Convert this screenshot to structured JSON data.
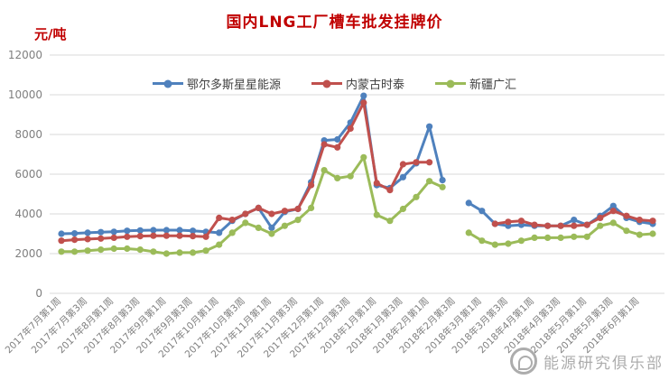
{
  "title": "国内LNG工厂槽车批发挂牌价",
  "y_unit": "元/吨",
  "watermark": "能源研究俱乐部",
  "colors": {
    "series_blue": "#4F81BD",
    "series_red": "#C0504D",
    "series_green": "#9BBB59",
    "title_red": "#C00000",
    "axis_text": "#7F7F7F",
    "gridline": "#D9D9D9",
    "legend_text": "#404040",
    "watermark_gray": "#9E9E9E"
  },
  "chart_data": {
    "type": "line",
    "title": "国内LNG工厂槽车批发挂牌价",
    "ylabel": "元/吨",
    "ylim": [
      0,
      12000
    ],
    "ytick_interval": 2000,
    "ytick_labels": [
      "12000",
      "10000",
      "8000",
      "6000",
      "4000",
      "2000",
      "0"
    ],
    "grid": true,
    "legend_position": "top-center",
    "points_total": 46,
    "x_label_every_n_points": 2,
    "x_labels": [
      "2017年7月第1周",
      "2017年7月第3周",
      "2017年8月第1周",
      "2017年8月第3周",
      "2017年9月第1周",
      "2017年9月第3周",
      "2017年10月第1周",
      "2017年10月第3周",
      "2017年11月第1周",
      "2017年11月第3周",
      "2017年12月第1周",
      "2017年12月第3周",
      "2018年1月第1周",
      "2018年1月第3周",
      "2018年2月第1周",
      "2018年2月第3周",
      "2018年3月第1周",
      "2018年3月第3周",
      "2018年4月第1周",
      "2018年4月第3周",
      "2018年5月第1周",
      "2018年5月第3周",
      "2018年6月第1周"
    ],
    "series": [
      {
        "name": "鄂尔多斯星星能源",
        "color": "#4F81BD",
        "values": [
          3000,
          3020,
          3050,
          3080,
          3100,
          3150,
          3170,
          3180,
          3180,
          3180,
          3150,
          3100,
          3050,
          3650,
          4000,
          4300,
          3300,
          4100,
          4250,
          5600,
          7700,
          7750,
          8600,
          9950,
          5450,
          5300,
          5850,
          6550,
          8400,
          5700,
          null,
          4550,
          4150,
          3500,
          3400,
          3450,
          3400,
          3400,
          3400,
          3700,
          3450,
          3900,
          4400,
          3800,
          3600,
          3500
        ]
      },
      {
        "name": "内蒙古时泰",
        "color": "#C0504D",
        "values": [
          2650,
          2700,
          2730,
          2760,
          2800,
          2850,
          2880,
          2900,
          2900,
          2900,
          2880,
          2850,
          3800,
          3700,
          4000,
          4300,
          4000,
          4150,
          4250,
          5450,
          7500,
          7350,
          8300,
          9600,
          5550,
          5200,
          6500,
          6600,
          6600,
          null,
          null,
          null,
          null,
          3500,
          3600,
          3650,
          3450,
          3400,
          3400,
          3400,
          3450,
          3800,
          4150,
          3900,
          3700,
          3650
        ]
      },
      {
        "name": "新疆广汇",
        "color": "#9BBB59",
        "values": [
          2100,
          2100,
          2150,
          2200,
          2250,
          2250,
          2200,
          2100,
          2000,
          2050,
          2050,
          2150,
          2450,
          3050,
          3550,
          3300,
          3000,
          3400,
          3700,
          4300,
          6200,
          5800,
          5900,
          6850,
          3950,
          3650,
          4250,
          4850,
          5650,
          5350,
          null,
          3050,
          2650,
          2450,
          2500,
          2650,
          2800,
          2800,
          2800,
          2850,
          2850,
          3400,
          3550,
          3150,
          2950,
          3000
        ]
      }
    ]
  }
}
